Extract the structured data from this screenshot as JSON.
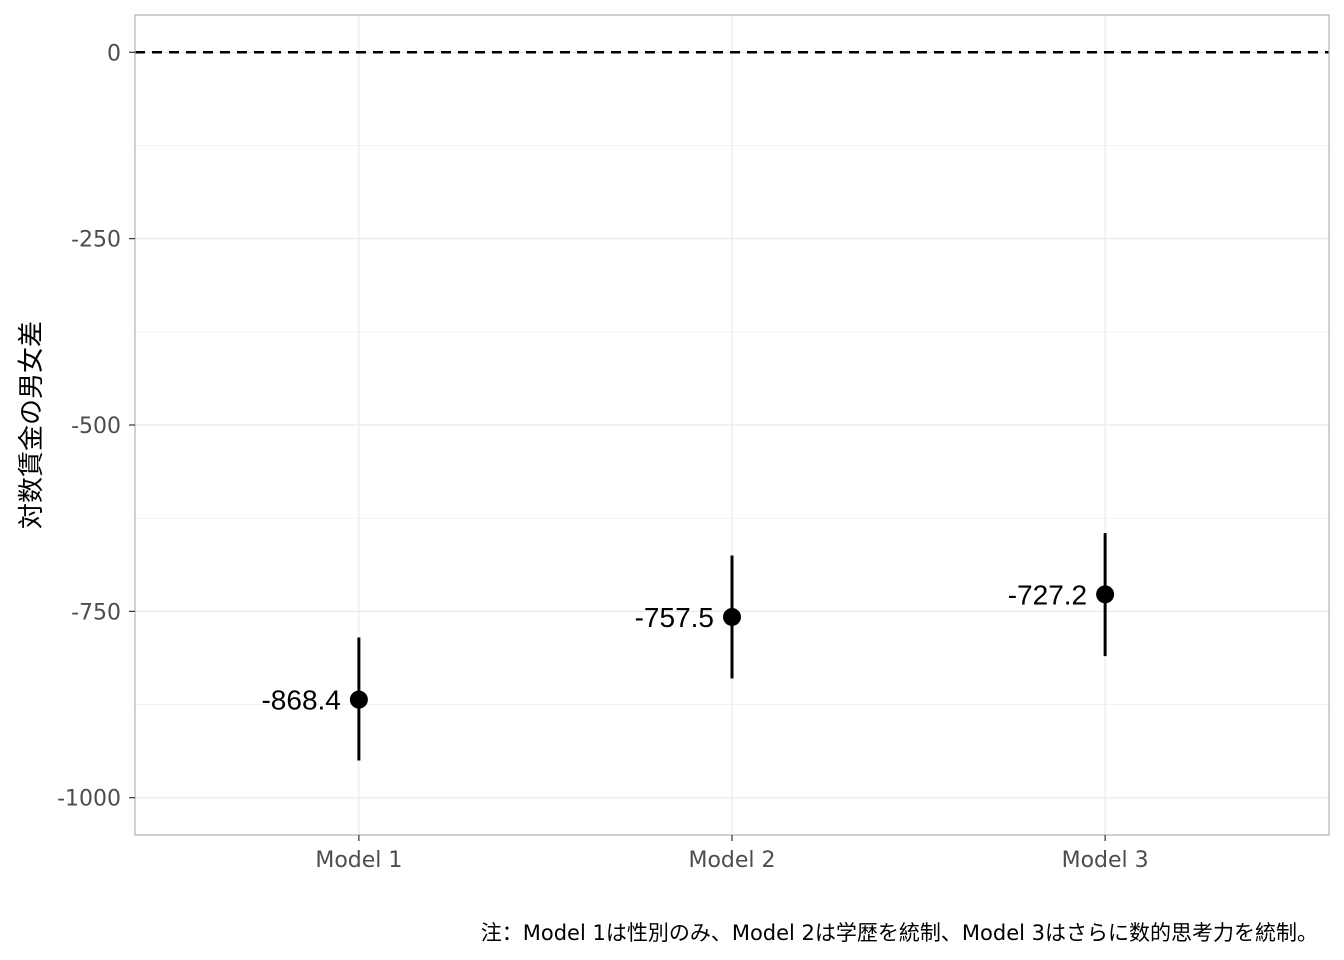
{
  "chart_data": {
    "type": "scatter",
    "subtype": "point-range",
    "categories": [
      "Model 1",
      "Model 2",
      "Model 3"
    ],
    "values": [
      -868.4,
      -757.5,
      -727.2
    ],
    "ci_lower": [
      -950,
      -840,
      -810
    ],
    "ci_upper": [
      -785,
      -675,
      -645
    ],
    "value_labels": [
      "-868.4",
      "-757.5",
      "-727.2"
    ],
    "reference_line": 0,
    "ylabel": "対数賃金の男女差",
    "xlabel": "",
    "ylim": [
      -1050,
      50
    ],
    "yticks": [
      0,
      -250,
      -500,
      -750,
      -1000
    ],
    "ytick_labels": [
      "0",
      "-250",
      "-500",
      "-750",
      "-1000"
    ],
    "grid": true,
    "caption": "注：Model 1は性別のみ、Model 2は学歴を統制、Model 3はさらに数的思考力を統制。",
    "colors": {
      "point": "#000000",
      "grid": "#ebebeb",
      "border": "#b3b3b3",
      "tick_label": "#4d4d4d"
    }
  }
}
